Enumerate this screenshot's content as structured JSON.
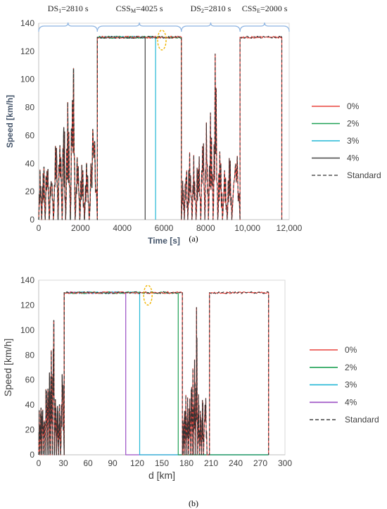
{
  "panel_labels": [
    "(a)",
    "(b)"
  ],
  "colors": {
    "s0": "#e8423b",
    "s2": "#1fa155",
    "s3": "#22b7d6",
    "s4a": "#444444",
    "s4b": "#9b4fc4",
    "standard": "#333333",
    "brace": "#8db4e2",
    "marker": "#f0b400"
  },
  "chart_data": [
    {
      "type": "line",
      "xlabel": "Time [s]",
      "ylabel": "Speed [km/h]",
      "xlim": [
        0,
        12000
      ],
      "ylim": [
        0,
        140
      ],
      "xticks": [
        "0",
        "2000",
        "4000",
        "6000",
        "8000",
        "10,000",
        "12,000"
      ],
      "xtick_values": [
        0,
        2000,
        4000,
        6000,
        8000,
        10000,
        12000
      ],
      "yticks": [
        "0",
        "20",
        "40",
        "60",
        "80",
        "100",
        "120",
        "140"
      ],
      "grid": false,
      "legend_position": "right",
      "phases": [
        {
          "label": "DS",
          "sub": "1",
          "rest": "=2810 s",
          "x": [
            0,
            2810
          ]
        },
        {
          "label": "CSS",
          "sub": "M",
          "rest": "=4025 s",
          "x": [
            2810,
            6835
          ]
        },
        {
          "label": "DS",
          "sub": "2",
          "rest": "=2810 s",
          "x": [
            6835,
            9645
          ]
        },
        {
          "label": "CSS",
          "sub": "E",
          "rest": "=2000 s",
          "x": [
            9645,
            11645
          ]
        }
      ],
      "series": [
        {
          "name": "0%",
          "end_x": 11645
        },
        {
          "name": "2%",
          "end_x": 6835
        },
        {
          "name": "3%",
          "end_x": 5600
        },
        {
          "name": "4%",
          "end_x": 5100
        },
        {
          "name": "Standard",
          "end_x": 11645
        }
      ],
      "cruise_speed": 130,
      "highlight_x": 5900
    },
    {
      "type": "line",
      "xlabel": "d [km]",
      "ylabel": "Speed [km/h]",
      "xlim": [
        0,
        300
      ],
      "ylim": [
        0,
        140
      ],
      "xticks": [
        "0",
        "30",
        "60",
        "90",
        "120",
        "150",
        "180",
        "210",
        "240",
        "270",
        "300"
      ],
      "xtick_values": [
        0,
        30,
        60,
        90,
        120,
        150,
        180,
        210,
        240,
        270,
        300
      ],
      "yticks": [
        "0",
        "20",
        "40",
        "60",
        "80",
        "100",
        "120",
        "140"
      ],
      "grid": false,
      "legend_position": "right",
      "series": [
        {
          "name": "0%",
          "end_x": 280
        },
        {
          "name": "2%",
          "end_x": 170
        },
        {
          "name": "3%",
          "end_x": 123
        },
        {
          "name": "4%",
          "end_x": 106
        },
        {
          "name": "Standard",
          "end_x": 280
        }
      ],
      "cruise_speed": 130,
      "highlight_x": 133
    }
  ]
}
